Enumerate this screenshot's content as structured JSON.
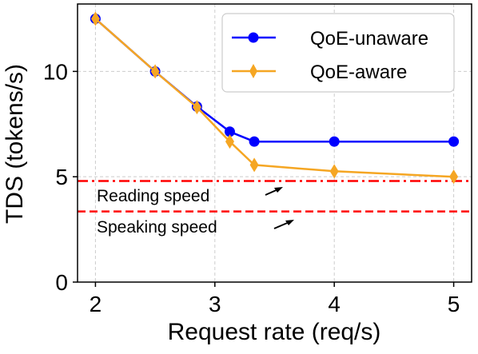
{
  "chart_data": {
    "type": "line",
    "xlabel": "Request rate (req/s)",
    "ylabel": "TDS (tokens/s)",
    "xlim": [
      1.85,
      5.15
    ],
    "ylim": [
      0,
      13.2
    ],
    "xticks": [
      2,
      3,
      4,
      5
    ],
    "xtick_labels": [
      "2",
      "3",
      "4",
      "5"
    ],
    "yticks": [
      0,
      5,
      10
    ],
    "ytick_labels": [
      "0",
      "5",
      "10"
    ],
    "grid": true,
    "legend_position": "top-right",
    "series": [
      {
        "name": "QoE-unaware",
        "color": "#0000ff",
        "marker": "circle",
        "x": [
          2.0,
          2.5,
          2.85,
          3.125,
          3.33,
          4.0,
          5.0
        ],
        "y": [
          12.5,
          10.0,
          8.33,
          7.14,
          6.67,
          6.67,
          6.67
        ]
      },
      {
        "name": "QoE-aware",
        "color": "#f5a623",
        "marker": "diamond",
        "x": [
          2.0,
          2.5,
          2.85,
          3.125,
          3.33,
          4.0,
          5.0
        ],
        "y": [
          12.5,
          10.0,
          8.3,
          6.67,
          5.56,
          5.26,
          5.0
        ]
      }
    ],
    "reference_lines": [
      {
        "label": "Reading speed",
        "y": 4.8,
        "style": "dash-dot",
        "color": "#ff0000"
      },
      {
        "label": "Speaking speed",
        "y": 3.35,
        "style": "dashed",
        "color": "#ff0000"
      }
    ]
  }
}
